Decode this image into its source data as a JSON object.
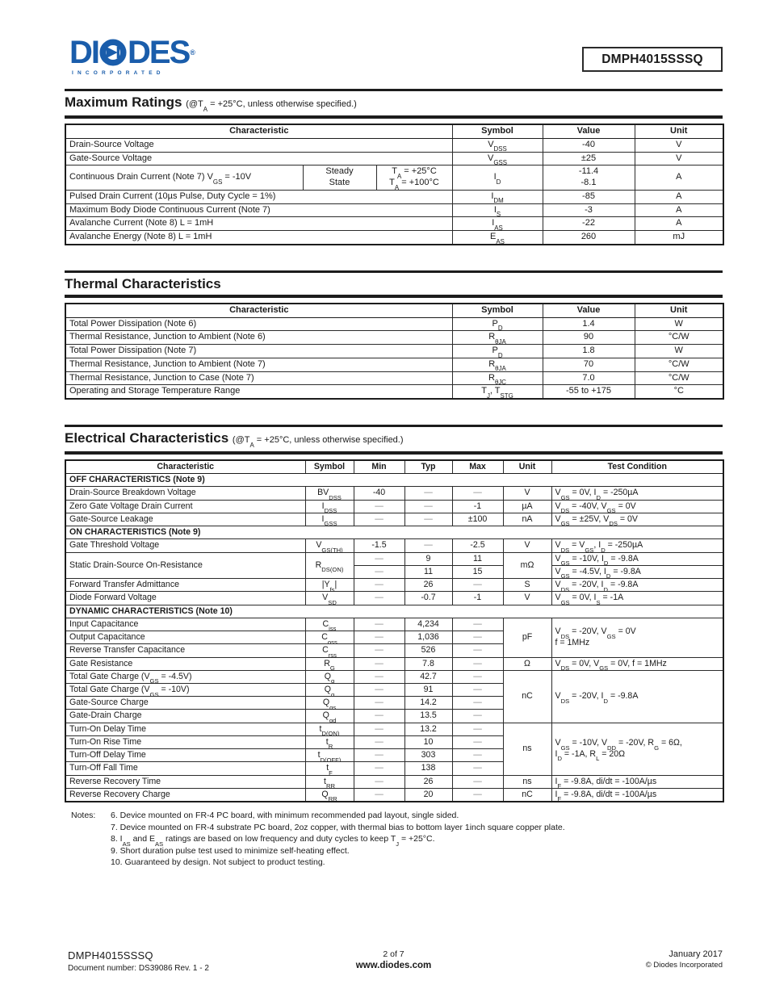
{
  "header": {
    "logo": {
      "name": "DIODES",
      "left": "DI",
      "right": "DES",
      "incorporated": "INCORPORATED",
      "reg": "®",
      "blue": "#1a5dab"
    },
    "part_number": "DMPH4015SSSQ"
  },
  "max_ratings": {
    "title": "Maximum Ratings",
    "caption": "(@T~A~ = +25°C, unless otherwise specified.)",
    "headers": {
      "characteristic": "Characteristic",
      "symbol": "Symbol",
      "value": "Value",
      "unit": "Unit"
    },
    "rows": [
      {
        "char": "Drain-Source Voltage",
        "sym": "V~DSS~",
        "val": "-40",
        "unit": "V"
      },
      {
        "char": "Gate-Source Voltage",
        "sym": "V~GSS~",
        "val": "±25",
        "unit": "V"
      },
      {
        "char": "Continuous Drain Current (Note 7) V~GS~ = -10V",
        "mode": "Steady\nState",
        "temps": "T~A~ = +25°C\nT~A~ = +100°C",
        "sym": "I~D~",
        "val": "-11.4\n-8.1",
        "unit": "A"
      },
      {
        "char": "Pulsed Drain Current (10µs Pulse, Duty Cycle = 1%)",
        "sym": "I~DM~",
        "val": "-85",
        "unit": "A"
      },
      {
        "char": "Maximum Body Diode Continuous Current (Note 7)",
        "sym": "I~S~",
        "val": "-3",
        "unit": "A"
      },
      {
        "char": "Avalanche Current (Note 8) L = 1mH",
        "sym": "I~AS~",
        "val": "-22",
        "unit": "A"
      },
      {
        "char": "Avalanche Energy (Note 8) L = 1mH",
        "sym": "E~AS~",
        "val": "260",
        "unit": "mJ"
      }
    ]
  },
  "thermal": {
    "title": "Thermal Characteristics",
    "headers": {
      "characteristic": "Characteristic",
      "symbol": "Symbol",
      "value": "Value",
      "unit": "Unit"
    },
    "rows": [
      {
        "char": "Total Power Dissipation (Note 6)",
        "sym": "P~D~",
        "val": "1.4",
        "unit": "W"
      },
      {
        "char": "Thermal Resistance, Junction to Ambient (Note 6)",
        "sym": "R~θJA~",
        "val": "90",
        "unit": "°C/W"
      },
      {
        "char": "Total Power Dissipation (Note 7)",
        "sym": "P~D~",
        "val": "1.8",
        "unit": "W"
      },
      {
        "char": "Thermal Resistance, Junction to Ambient (Note 7)",
        "sym": "R~θJA~",
        "val": "70",
        "unit": "°C/W"
      },
      {
        "char": "Thermal Resistance, Junction to Case (Note 7)",
        "sym": "R~θJC~",
        "val": "7.0",
        "unit": "°C/W"
      },
      {
        "char": "Operating and Storage Temperature Range",
        "sym": "T~J~, T~STG~",
        "val": "-55 to +175",
        "unit": "°C"
      }
    ]
  },
  "electrical": {
    "title": "Electrical Characteristics",
    "caption": "(@T~A~ = +25°C, unless otherwise specified.)",
    "headers": {
      "characteristic": "Characteristic",
      "symbol": "Symbol",
      "min": "Min",
      "typ": "Typ",
      "max": "Max",
      "unit": "Unit",
      "test_condition": "Test Condition"
    },
    "sections": {
      "off": "OFF CHARACTERISTICS (Note 9)",
      "on": "ON CHARACTERISTICS (Note 9)",
      "dynamic": "DYNAMIC CHARACTERISTICS (Note 10)"
    },
    "rows": {
      "bvdss": {
        "char": "Drain-Source Breakdown Voltage",
        "sym": "BV~DSS~",
        "min": "-40",
        "typ": "—",
        "max": "—",
        "unit": "V",
        "tc": "V~GS~ = 0V, I~D~ = -250µA"
      },
      "idss": {
        "char": "Zero Gate Voltage Drain Current",
        "sym": "I~DSS~",
        "min": "—",
        "typ": "—",
        "max": "-1",
        "unit": "µA",
        "tc": "V~DS~ = -40V, V~GS~ = 0V"
      },
      "igss": {
        "char": "Gate-Source Leakage",
        "sym": "I~GSS~",
        "min": "—",
        "typ": "—",
        "max": "±100",
        "unit": "nA",
        "tc": "V~GS~ = ±25V, V~DS~ = 0V"
      },
      "vgsth": {
        "char": "Gate Threshold Voltage",
        "sym": "V~GS(TH)~",
        "min": "-1.5",
        "typ": "—",
        "max": "-2.5",
        "unit": "V",
        "tc": "V~DS~ = V~GS~, I~D~ = -250µA"
      },
      "rdson": {
        "char": "Static Drain-Source On-Resistance",
        "sym": "R~DS(ON)~",
        "unit": "mΩ",
        "r1": {
          "min": "—",
          "typ": "9",
          "max": "11",
          "tc": "V~GS~ = -10V, I~D~ = -9.8A"
        },
        "r2": {
          "min": "—",
          "typ": "11",
          "max": "15",
          "tc": "V~GS~ = -4.5V, I~D~ = -9.8A"
        }
      },
      "yfs": {
        "char": "Forward Transfer Admittance",
        "sym": "|Y~fs~|",
        "min": "—",
        "typ": "26",
        "max": "—",
        "unit": "S",
        "tc": "V~DS~ = -20V, I~D~ = -9.8A"
      },
      "vsd": {
        "char": "Diode Forward Voltage",
        "sym": "V~SD~",
        "min": "—",
        "typ": "-0.7",
        "max": "-1",
        "unit": "V",
        "tc": "V~GS~ = 0V, I~S~ = -1A"
      },
      "ciss": {
        "char": "Input Capacitance",
        "sym": "C~iss~",
        "min": "—",
        "typ": "4,234",
        "max": "—"
      },
      "coss": {
        "char": "Output Capacitance",
        "sym": "C~oss~",
        "min": "—",
        "typ": "1,036",
        "max": "—"
      },
      "crss": {
        "char": "Reverse Transfer Capacitance",
        "sym": "C~rss~",
        "min": "—",
        "typ": "526",
        "max": "—"
      },
      "rg": {
        "char": "Gate Resistance",
        "sym": "R~G~",
        "min": "—",
        "typ": "7.8",
        "max": "—",
        "unit": "Ω",
        "tc": "V~DS~ = 0V, V~GS~ = 0V, f = 1MHz"
      },
      "qg45": {
        "char": "Total Gate Charge (V~GS~ = -4.5V)",
        "sym": "Q~g~",
        "min": "—",
        "typ": "42.7",
        "max": "—"
      },
      "qg10": {
        "char": "Total Gate Charge (V~GS~ = -10V)",
        "sym": "Q~g~",
        "min": "—",
        "typ": "91",
        "max": "—"
      },
      "qgs": {
        "char": "Gate-Source Charge",
        "sym": "Q~gs~",
        "min": "—",
        "typ": "14.2",
        "max": "—"
      },
      "qgd": {
        "char": "Gate-Drain Charge",
        "sym": "Q~gd~",
        "min": "—",
        "typ": "13.5",
        "max": "—"
      },
      "tdon": {
        "char": "Turn-On Delay Time",
        "sym": "t~D(ON)~",
        "min": "—",
        "typ": "13.2",
        "max": "—"
      },
      "tr": {
        "char": "Turn-On Rise Time",
        "sym": "t~R~",
        "min": "—",
        "typ": "10",
        "max": "—"
      },
      "tdoff": {
        "char": "Turn-Off Delay Time",
        "sym": "t~D(OFF)~",
        "min": "—",
        "typ": "303",
        "max": "—"
      },
      "tf": {
        "char": "Turn-Off Fall Time",
        "sym": "t~F~",
        "min": "—",
        "typ": "138",
        "max": "—"
      },
      "trr": {
        "char": "Reverse Recovery Time",
        "sym": "t~RR~",
        "min": "—",
        "typ": "26",
        "max": "—",
        "unit": "ns",
        "tc": "I~F~ = -9.8A, di/dt = -100A/µs"
      },
      "qrr": {
        "char": "Reverse Recovery Charge",
        "sym": "Q~RR~",
        "min": "—",
        "typ": "20",
        "max": "—",
        "unit": "nC",
        "tc": "I~F~ = -9.8A, di/dt = -100A/µs"
      }
    },
    "groups": {
      "capacitance": {
        "unit": "pF",
        "tc": "V~DS~ = -20V, V~GS~ = 0V\nf = 1MHz"
      },
      "gate_charge": {
        "unit": "nC",
        "tc": "V~DS~ = -20V, I~D~ = -9.8A"
      },
      "switching": {
        "unit": "ns",
        "tc": "V~GS~ = -10V, V~DD~ = -20V, R~G~ = 6Ω,\nI~D~ = -1A, R~L~ = 20Ω"
      }
    }
  },
  "notes": {
    "label": "Notes:",
    "items": [
      "6. Device mounted on FR-4 PC board, with minimum recommended pad layout, single sided.",
      "7. Device mounted on FR-4 substrate PC board, 2oz copper, with thermal bias to bottom layer 1inch square copper plate.",
      "8. I~AS~ and E~AS~ ratings are based on low frequency and duty cycles to keep T~J~ = +25°C.",
      "9. Short duration pulse test used to minimize self-heating effect.",
      "10. Guaranteed by design. Not subject to product testing."
    ]
  },
  "footer": {
    "part": "DMPH4015SSSQ",
    "doc": "Document number: DS39086  Rev. 1 - 2",
    "page": "2 of 7",
    "site": "www.diodes.com",
    "date": "January 2017",
    "copyright": "© Diodes Incorporated"
  }
}
